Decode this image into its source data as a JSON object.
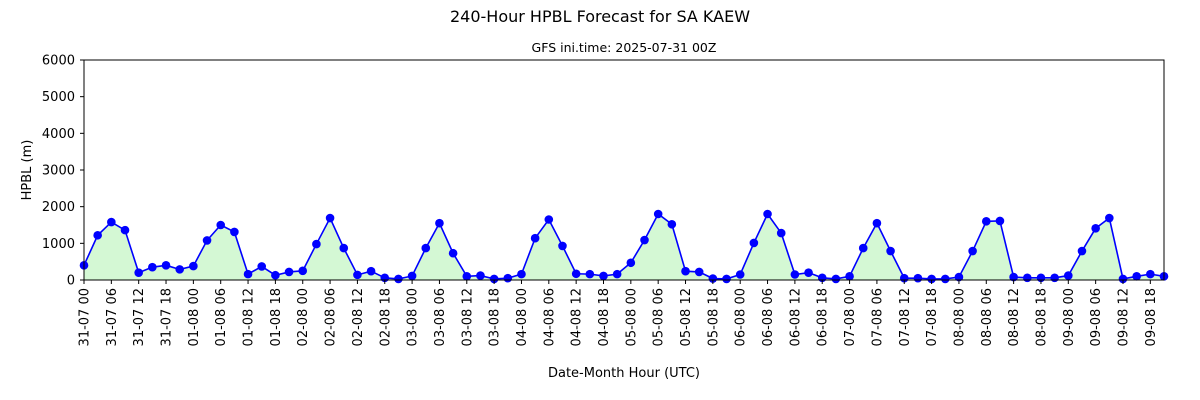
{
  "chart_data": {
    "type": "area",
    "title": "240-Hour HPBL Forecast for SA KAEW",
    "subtitle": "GFS ini.time: 2025-07-31 00Z",
    "xlabel": "Date-Month Hour (UTC)",
    "ylabel": "HPBL (m)",
    "ylim": [
      0,
      6000
    ],
    "yticks": [
      0,
      1000,
      2000,
      3000,
      4000,
      5000,
      6000
    ],
    "x_step_hours": 3,
    "x_tick_every_points": 2,
    "x_tick_labels": [
      "31-07 00",
      "31-07 06",
      "31-07 12",
      "31-07 18",
      "01-08 00",
      "01-08 06",
      "01-08 12",
      "01-08 18",
      "02-08 00",
      "02-08 06",
      "02-08 12",
      "02-08 18",
      "03-08 00",
      "03-08 06",
      "03-08 12",
      "03-08 18",
      "04-08 00",
      "04-08 06",
      "04-08 12",
      "04-08 18",
      "05-08 00",
      "05-08 06",
      "05-08 12",
      "05-08 18",
      "06-08 00",
      "06-08 06",
      "06-08 12",
      "06-08 18",
      "07-08 00",
      "07-08 06",
      "07-08 12",
      "07-08 18",
      "08-08 00",
      "08-08 06",
      "08-08 12",
      "08-08 18",
      "09-08 00",
      "09-08 06",
      "09-08 12",
      "09-08 18"
    ],
    "grid": false,
    "line_color": "#0000ff",
    "fill_color": "#d4f8d4",
    "series": [
      {
        "values": [
          400,
          1220,
          1580,
          1360,
          200,
          350,
          400,
          290,
          380,
          1080,
          1500,
          1310,
          160,
          370,
          130,
          220,
          250,
          980,
          1690,
          870,
          140,
          240,
          60,
          30,
          110,
          870,
          1550,
          730,
          100,
          120,
          30,
          50,
          160,
          1140,
          1650,
          930,
          170,
          160,
          110,
          160,
          470,
          1090,
          1800,
          1520,
          240,
          220,
          40,
          30,
          150,
          1010,
          1800,
          1280,
          150,
          200,
          60,
          30,
          100,
          870,
          1550,
          790,
          50,
          50,
          30,
          30,
          80,
          790,
          1600,
          1610,
          80,
          60,
          60,
          60,
          120,
          790,
          1410,
          1690,
          30,
          100,
          160,
          100
        ]
      }
    ]
  }
}
